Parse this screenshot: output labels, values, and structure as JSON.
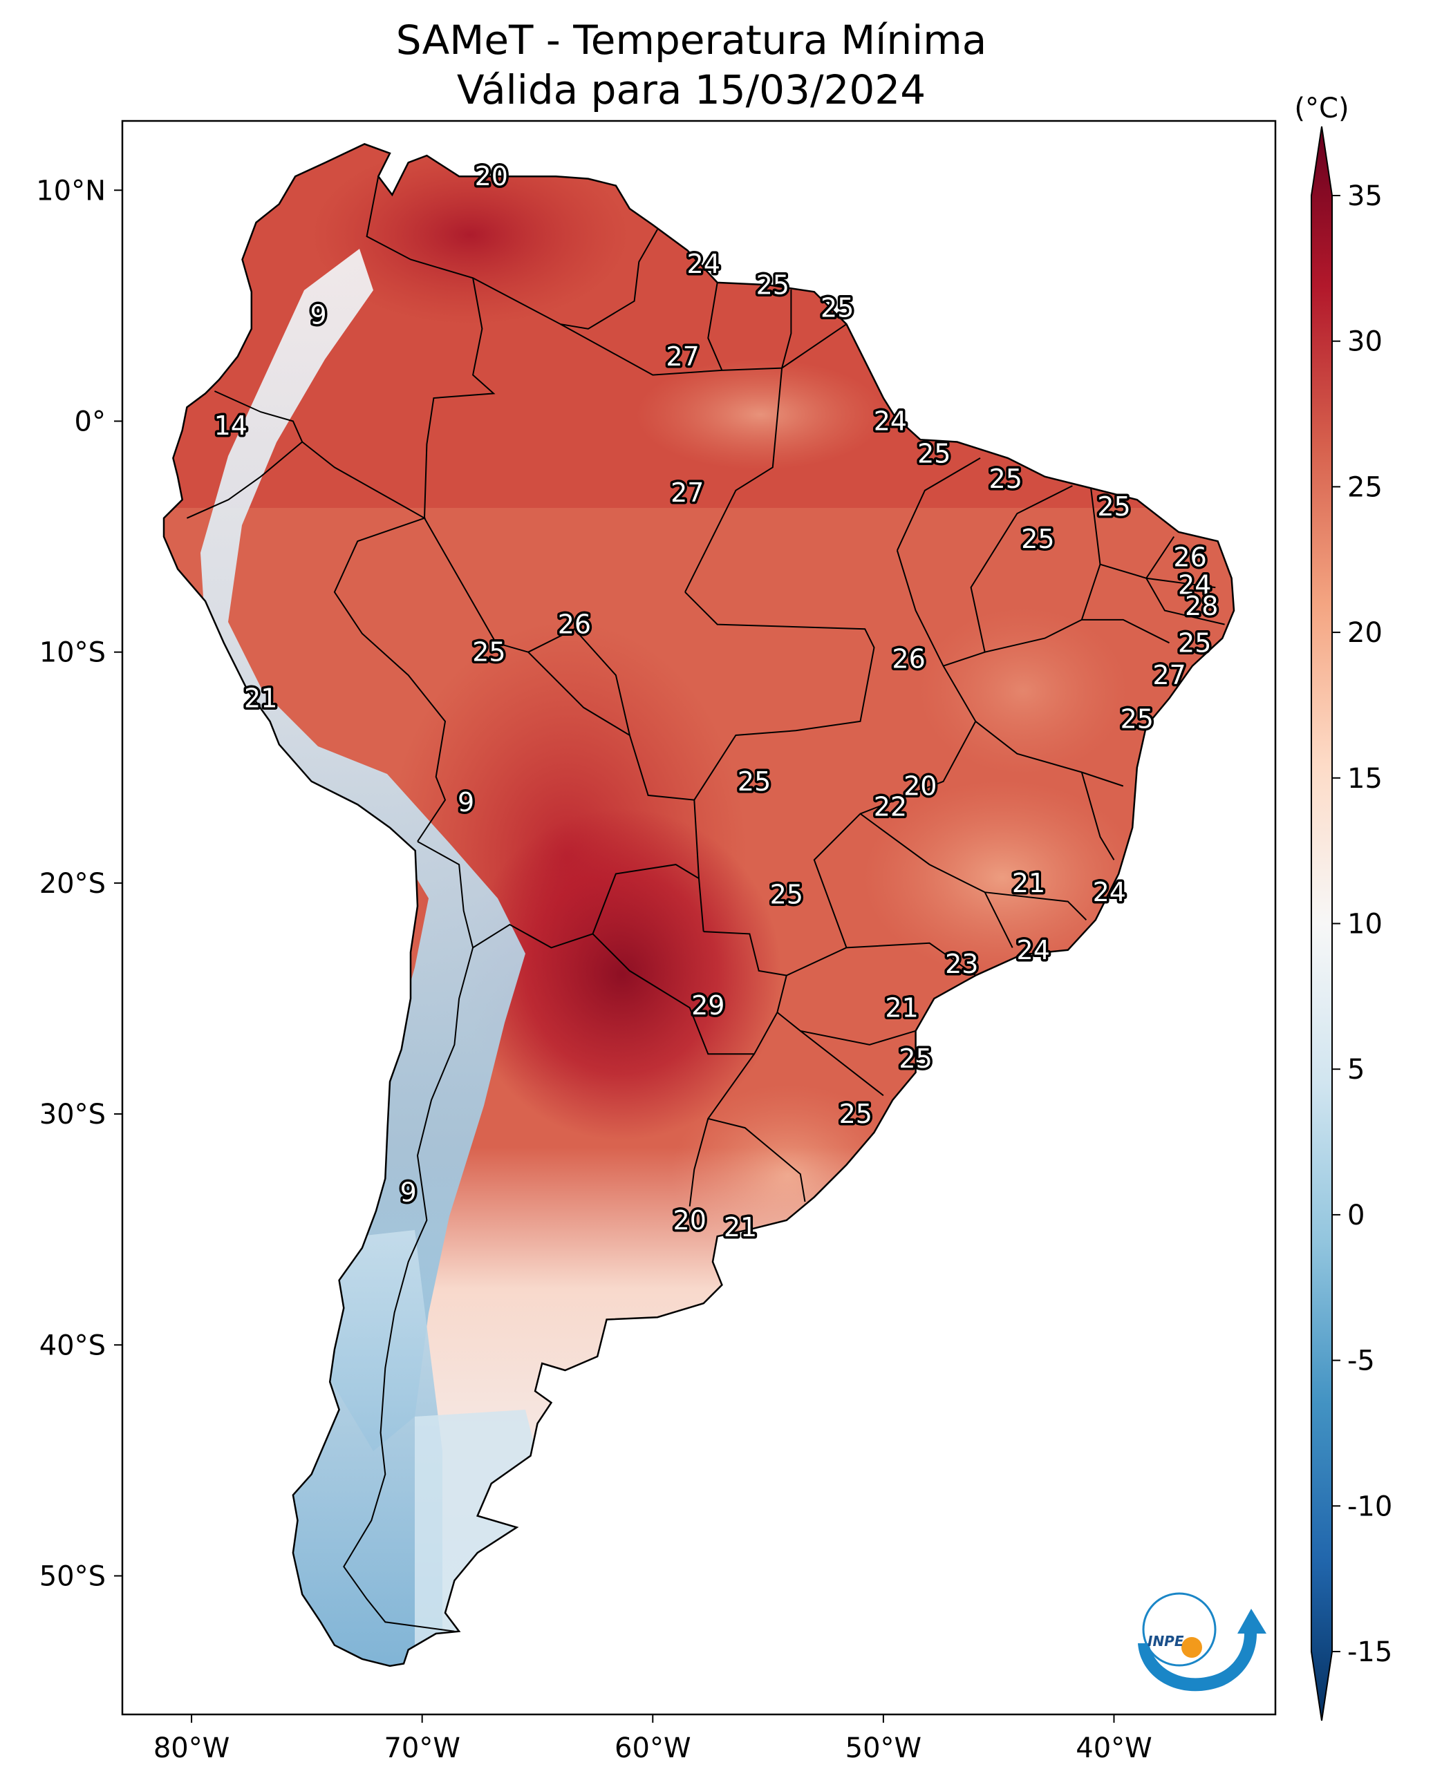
{
  "title": "SAMeT - Temperatura Mínima",
  "subtitle": "Válida para 15/03/2024",
  "colorbar": {
    "unit": "(°C)",
    "ticks": [
      "35",
      "30",
      "25",
      "20",
      "15",
      "10",
      "5",
      "0",
      "-5",
      "-10",
      "-15"
    ],
    "values": [
      35,
      30,
      25,
      20,
      15,
      10,
      5,
      0,
      -5,
      -10,
      -15
    ],
    "range": [
      -15,
      35
    ],
    "colors": [
      "#053061",
      "#2166ac",
      "#4393c3",
      "#92c5de",
      "#d1e5f0",
      "#f7f7f7",
      "#fddbc7",
      "#f4a582",
      "#d6604d",
      "#b2182b",
      "#67001f"
    ]
  },
  "axes": {
    "lon_labels": [
      "80°W",
      "70°W",
      "60°W",
      "50°W",
      "40°W"
    ],
    "lon_values": [
      -80,
      -70,
      -60,
      -50,
      -40
    ],
    "lat_labels": [
      "10°N",
      "0°",
      "10°S",
      "20°S",
      "30°S",
      "40°S",
      "50°S"
    ],
    "lat_values": [
      10,
      0,
      -10,
      -20,
      -30,
      -40,
      -50
    ],
    "lon_range": [
      -83,
      -33
    ],
    "lat_range": [
      -56,
      13
    ]
  },
  "stations": [
    {
      "label": "20",
      "lon": -67.0,
      "lat": 10.6
    },
    {
      "label": "24",
      "lon": -57.8,
      "lat": 6.8
    },
    {
      "label": "25",
      "lon": -54.8,
      "lat": 5.9
    },
    {
      "label": "25",
      "lon": -52.0,
      "lat": 4.9
    },
    {
      "label": "9",
      "lon": -74.5,
      "lat": 4.6
    },
    {
      "label": "27",
      "lon": -58.7,
      "lat": 2.8
    },
    {
      "label": "14",
      "lon": -78.3,
      "lat": -0.2
    },
    {
      "label": "24",
      "lon": -49.7,
      "lat": 0.0
    },
    {
      "label": "25",
      "lon": -47.8,
      "lat": -1.4
    },
    {
      "label": "27",
      "lon": -58.5,
      "lat": -3.1
    },
    {
      "label": "25",
      "lon": -44.7,
      "lat": -2.5
    },
    {
      "label": "25",
      "lon": -40.0,
      "lat": -3.7
    },
    {
      "label": "25",
      "lon": -43.3,
      "lat": -5.1
    },
    {
      "label": "26",
      "lon": -36.7,
      "lat": -5.9
    },
    {
      "label": "24",
      "lon": -36.5,
      "lat": -7.1
    },
    {
      "label": "28",
      "lon": -36.2,
      "lat": -8.0
    },
    {
      "label": "26",
      "lon": -63.4,
      "lat": -8.8
    },
    {
      "label": "25",
      "lon": -36.5,
      "lat": -9.6
    },
    {
      "label": "25",
      "lon": -67.1,
      "lat": -10.0
    },
    {
      "label": "26",
      "lon": -48.9,
      "lat": -10.3
    },
    {
      "label": "27",
      "lon": -37.6,
      "lat": -11.0
    },
    {
      "label": "21",
      "lon": -77.0,
      "lat": -12.0
    },
    {
      "label": "25",
      "lon": -39.0,
      "lat": -12.9
    },
    {
      "label": "25",
      "lon": -55.6,
      "lat": -15.6
    },
    {
      "label": "20",
      "lon": -48.4,
      "lat": -15.8
    },
    {
      "label": "22",
      "lon": -49.7,
      "lat": -16.7
    },
    {
      "label": "9",
      "lon": -68.1,
      "lat": -16.5
    },
    {
      "label": "21",
      "lon": -43.7,
      "lat": -20.0
    },
    {
      "label": "24",
      "lon": -40.2,
      "lat": -20.4
    },
    {
      "label": "25",
      "lon": -54.2,
      "lat": -20.5
    },
    {
      "label": "24",
      "lon": -43.5,
      "lat": -22.9
    },
    {
      "label": "23",
      "lon": -46.6,
      "lat": -23.5
    },
    {
      "label": "29",
      "lon": -57.6,
      "lat": -25.3
    },
    {
      "label": "21",
      "lon": -49.2,
      "lat": -25.4
    },
    {
      "label": "25",
      "lon": -48.6,
      "lat": -27.6
    },
    {
      "label": "25",
      "lon": -51.2,
      "lat": -30.0
    },
    {
      "label": "9",
      "lon": -70.6,
      "lat": -33.4
    },
    {
      "label": "20",
      "lon": -58.4,
      "lat": -34.6
    },
    {
      "label": "21",
      "lon": -56.2,
      "lat": -34.9
    }
  ]
}
